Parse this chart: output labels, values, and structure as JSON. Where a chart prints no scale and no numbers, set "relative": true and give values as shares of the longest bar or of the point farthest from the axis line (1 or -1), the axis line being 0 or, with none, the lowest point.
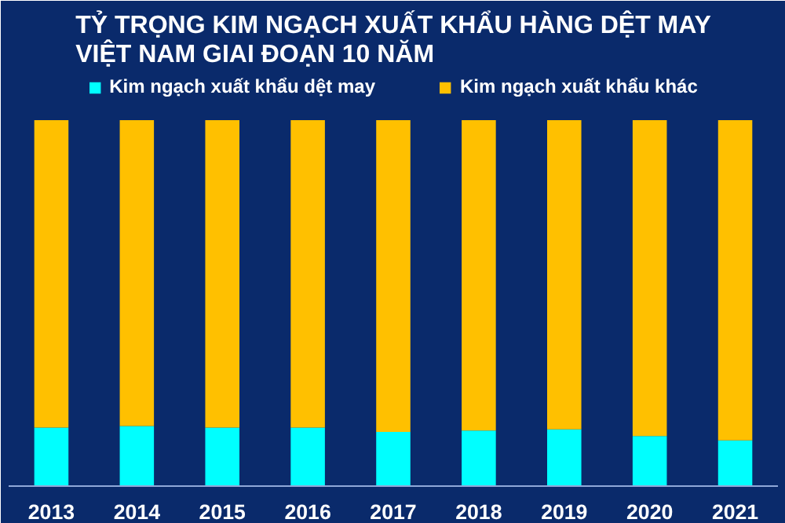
{
  "chart_data": {
    "type": "bar",
    "title": "TỶ TRỌNG KIM NGẠCH XUẤT KHẨU HÀNG DỆT MAY\nVIỆT NAM GIAI ĐOẠN 10 NĂM",
    "categories": [
      "2013",
      "2014",
      "2015",
      "2016",
      "2017",
      "2018",
      "2019",
      "2020",
      "2021"
    ],
    "stacked": true,
    "relative": true,
    "legend": "top",
    "series": [
      {
        "name": "Kim ngạch xuất khẩu dệt may",
        "color": "#00ffff",
        "values": [
          0.16,
          0.164,
          0.16,
          0.16,
          0.148,
          0.152,
          0.155,
          0.137,
          0.125
        ]
      },
      {
        "name": "Kim ngạch xuất khẩu khác",
        "color": "#ffc000",
        "values": [
          0.84,
          0.836,
          0.84,
          0.84,
          0.852,
          0.848,
          0.845,
          0.863,
          0.875
        ]
      }
    ]
  }
}
